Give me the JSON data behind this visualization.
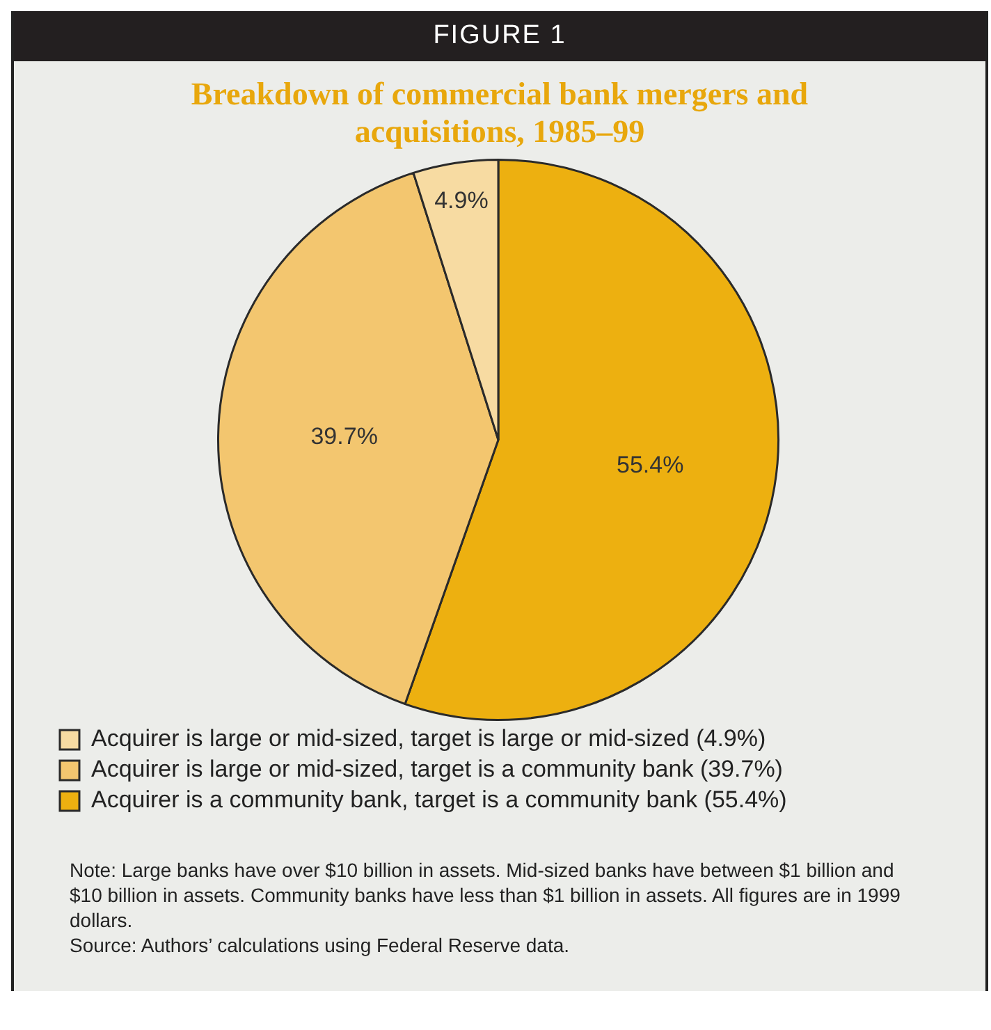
{
  "chart_data": {
    "type": "pie",
    "title": "Breakdown of commercial bank mergers and acquisitions, 1985–99",
    "categories": [
      "Acquirer is large or mid-sized, target is large or mid-sized (4.9%)",
      "Acquirer is large or mid-sized, target is a community bank (39.7%)",
      "Acquirer is a community bank, target is a community bank (55.4%)"
    ],
    "values": [
      4.9,
      39.7,
      55.4
    ],
    "colors": [
      "#f7dba2",
      "#f3c66f",
      "#edb010"
    ],
    "value_labels": [
      "4.9%",
      "39.7%",
      "55.4%"
    ],
    "legend": "bottom",
    "annotations": [
      "FIGURE 1",
      "Note: Large banks have over $10 billion in assets. Mid-sized banks have between $1 billion  and $10 billion in assets. Community banks have less than $1 billion in assets. All figures are in 1999 dollars.",
      "Source: Authors’ calculations using Federal Reserve data."
    ]
  }
}
